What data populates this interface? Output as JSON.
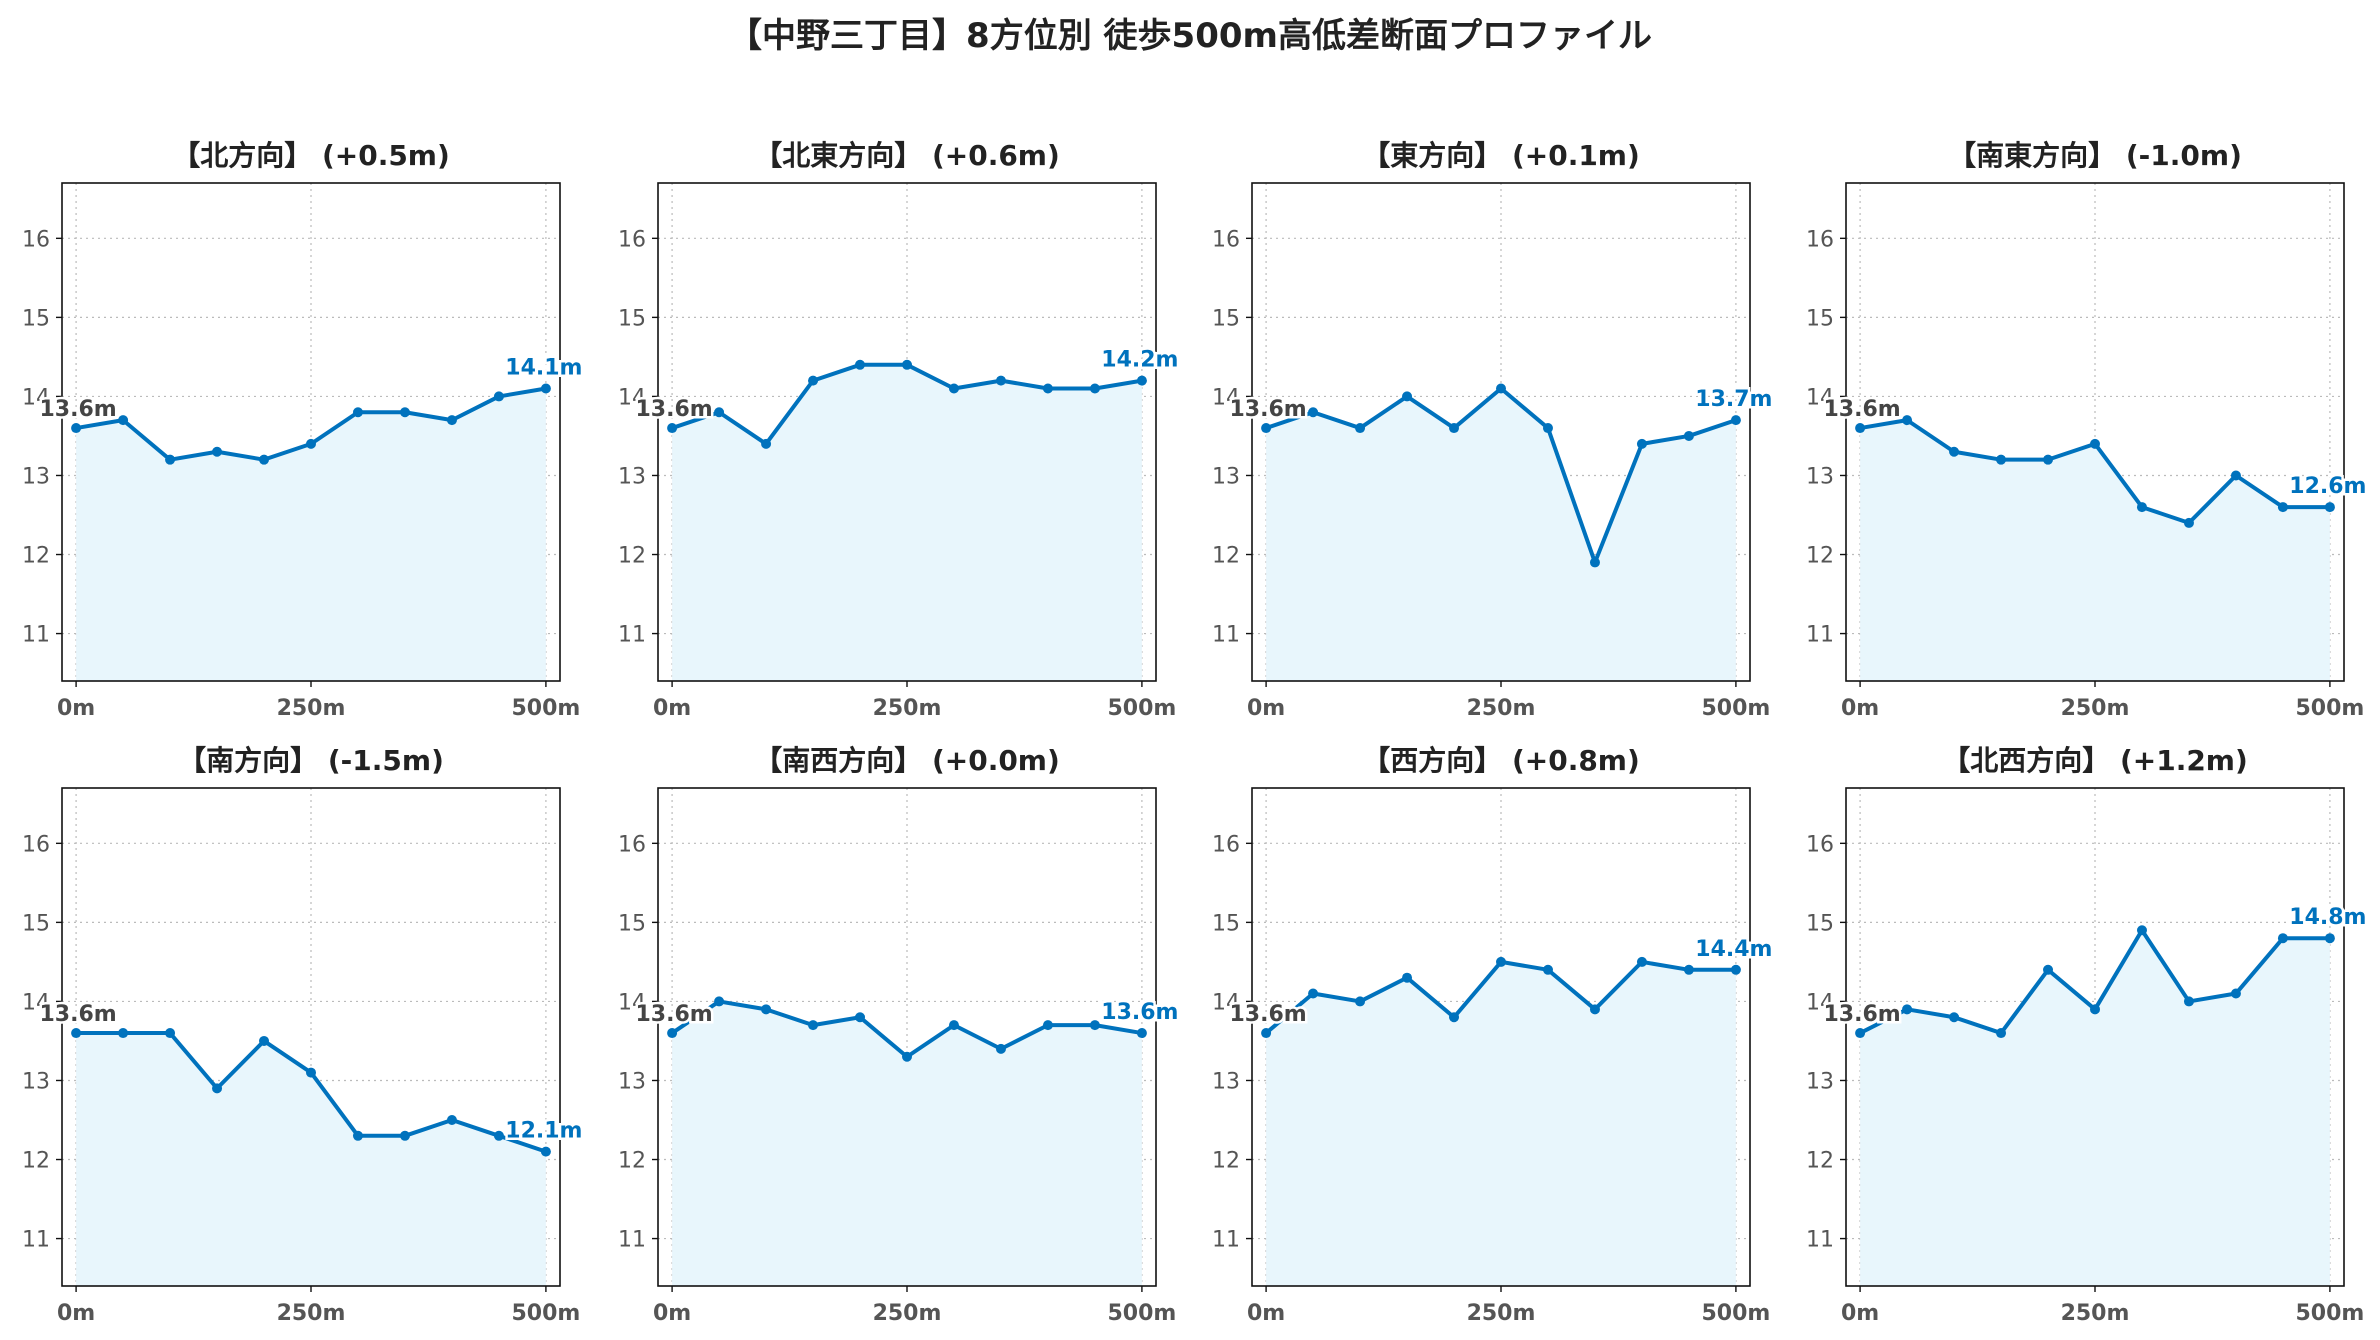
{
  "title": "【中野三丁目】8方位別 徒歩500m高低差断面プロファイル",
  "colors": {
    "line": "#0072BD",
    "fill": "#E8F6FC",
    "grid": "#BBBBBB",
    "start_label": "#444444",
    "end_label": "#0072BD"
  },
  "chart_data": [
    {
      "type": "area",
      "title": "【北方向】 (+0.5m)",
      "x": [
        0,
        50,
        100,
        150,
        200,
        250,
        300,
        350,
        400,
        450,
        500
      ],
      "values": [
        13.6,
        13.7,
        13.2,
        13.3,
        13.2,
        13.4,
        13.8,
        13.8,
        13.7,
        14.0,
        14.1
      ],
      "xticks": [
        "0m",
        "250m",
        "500m"
      ],
      "yticks": [
        "11",
        "12",
        "13",
        "14",
        "15",
        "16"
      ],
      "ylim": [
        10.4,
        16.7
      ],
      "xlim": [
        -15,
        515
      ],
      "grid": true,
      "start_label": "13.6m",
      "end_label": "14.1m"
    },
    {
      "type": "area",
      "title": "【北東方向】 (+0.6m)",
      "x": [
        0,
        50,
        100,
        150,
        200,
        250,
        300,
        350,
        400,
        450,
        500
      ],
      "values": [
        13.6,
        13.8,
        13.4,
        14.2,
        14.4,
        14.4,
        14.1,
        14.2,
        14.1,
        14.1,
        14.2
      ],
      "xticks": [
        "0m",
        "250m",
        "500m"
      ],
      "yticks": [
        "11",
        "12",
        "13",
        "14",
        "15",
        "16"
      ],
      "ylim": [
        10.4,
        16.7
      ],
      "xlim": [
        -15,
        515
      ],
      "grid": true,
      "start_label": "13.6m",
      "end_label": "14.2m"
    },
    {
      "type": "area",
      "title": "【東方向】 (+0.1m)",
      "x": [
        0,
        50,
        100,
        150,
        200,
        250,
        300,
        350,
        400,
        450,
        500
      ],
      "values": [
        13.6,
        13.8,
        13.6,
        14.0,
        13.6,
        14.1,
        13.6,
        11.9,
        13.4,
        13.5,
        13.7
      ],
      "xticks": [
        "0m",
        "250m",
        "500m"
      ],
      "yticks": [
        "11",
        "12",
        "13",
        "14",
        "15",
        "16"
      ],
      "ylim": [
        10.4,
        16.7
      ],
      "xlim": [
        -15,
        515
      ],
      "grid": true,
      "start_label": "13.6m",
      "end_label": "13.7m"
    },
    {
      "type": "area",
      "title": "【南東方向】 (-1.0m)",
      "x": [
        0,
        50,
        100,
        150,
        200,
        250,
        300,
        350,
        400,
        450,
        500
      ],
      "values": [
        13.6,
        13.7,
        13.3,
        13.2,
        13.2,
        13.4,
        12.6,
        12.4,
        13.0,
        12.6,
        12.6
      ],
      "xticks": [
        "0m",
        "250m",
        "500m"
      ],
      "yticks": [
        "11",
        "12",
        "13",
        "14",
        "15",
        "16"
      ],
      "ylim": [
        10.4,
        16.7
      ],
      "xlim": [
        -15,
        515
      ],
      "grid": true,
      "start_label": "13.6m",
      "end_label": "12.6m"
    },
    {
      "type": "area",
      "title": "【南方向】 (-1.5m)",
      "x": [
        0,
        50,
        100,
        150,
        200,
        250,
        300,
        350,
        400,
        450,
        500
      ],
      "values": [
        13.6,
        13.6,
        13.6,
        12.9,
        13.5,
        13.1,
        12.3,
        12.3,
        12.5,
        12.3,
        12.1
      ],
      "xticks": [
        "0m",
        "250m",
        "500m"
      ],
      "yticks": [
        "11",
        "12",
        "13",
        "14",
        "15",
        "16"
      ],
      "ylim": [
        10.4,
        16.7
      ],
      "xlim": [
        -15,
        515
      ],
      "grid": true,
      "start_label": "13.6m",
      "end_label": "12.1m"
    },
    {
      "type": "area",
      "title": "【南西方向】 (+0.0m)",
      "x": [
        0,
        50,
        100,
        150,
        200,
        250,
        300,
        350,
        400,
        450,
        500
      ],
      "values": [
        13.6,
        14.0,
        13.9,
        13.7,
        13.8,
        13.3,
        13.7,
        13.4,
        13.7,
        13.7,
        13.6
      ],
      "xticks": [
        "0m",
        "250m",
        "500m"
      ],
      "yticks": [
        "11",
        "12",
        "13",
        "14",
        "15",
        "16"
      ],
      "ylim": [
        10.4,
        16.7
      ],
      "xlim": [
        -15,
        515
      ],
      "grid": true,
      "start_label": "13.6m",
      "end_label": "13.6m"
    },
    {
      "type": "area",
      "title": "【西方向】 (+0.8m)",
      "x": [
        0,
        50,
        100,
        150,
        200,
        250,
        300,
        350,
        400,
        450,
        500
      ],
      "values": [
        13.6,
        14.1,
        14.0,
        14.3,
        13.8,
        14.5,
        14.4,
        13.9,
        14.5,
        14.4,
        14.4
      ],
      "xticks": [
        "0m",
        "250m",
        "500m"
      ],
      "yticks": [
        "11",
        "12",
        "13",
        "14",
        "15",
        "16"
      ],
      "ylim": [
        10.4,
        16.7
      ],
      "xlim": [
        -15,
        515
      ],
      "grid": true,
      "start_label": "13.6m",
      "end_label": "14.4m"
    },
    {
      "type": "area",
      "title": "【北西方向】 (+1.2m)",
      "x": [
        0,
        50,
        100,
        150,
        200,
        250,
        300,
        350,
        400,
        450,
        500
      ],
      "values": [
        13.6,
        13.9,
        13.8,
        13.6,
        14.4,
        13.9,
        14.9,
        14.0,
        14.1,
        14.8,
        14.8
      ],
      "xticks": [
        "0m",
        "250m",
        "500m"
      ],
      "yticks": [
        "11",
        "12",
        "13",
        "14",
        "15",
        "16"
      ],
      "ylim": [
        10.4,
        16.7
      ],
      "xlim": [
        -15,
        515
      ],
      "grid": true,
      "start_label": "13.6m",
      "end_label": "14.8m"
    }
  ]
}
